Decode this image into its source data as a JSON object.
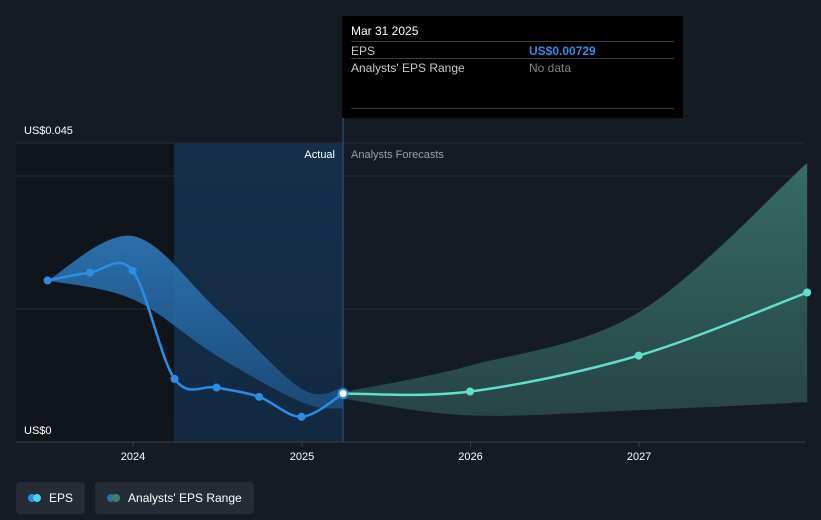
{
  "chart_data": {
    "type": "line",
    "y_labels": {
      "top": "US$0.045",
      "bottom": "US$0"
    },
    "ylim": [
      0,
      0.045
    ],
    "x_ticks": [
      "2024",
      "2025",
      "2026",
      "2027"
    ],
    "section_labels": {
      "actual": "Actual",
      "forecast": "Analysts Forecasts"
    },
    "series": [
      {
        "name": "EPS",
        "values": [
          {
            "x": "2023-06-30",
            "y": 0.0243
          },
          {
            "x": "2023-09-30",
            "y": 0.0255
          },
          {
            "x": "2023-12-31",
            "y": 0.0258
          },
          {
            "x": "2024-03-31",
            "y": 0.0095
          },
          {
            "x": "2024-06-30",
            "y": 0.0082
          },
          {
            "x": "2024-09-30",
            "y": 0.0068
          },
          {
            "x": "2024-12-31",
            "y": 0.0038
          },
          {
            "x": "2025-03-31",
            "y": 0.00729
          }
        ]
      },
      {
        "name": "EPS forecast",
        "values": [
          {
            "x": "2025-03-31",
            "y": 0.00729
          },
          {
            "x": "2025-12-31",
            "y": 0.0076
          },
          {
            "x": "2026-12-31",
            "y": 0.013
          },
          {
            "x": "2027-12-31",
            "y": 0.0225
          }
        ]
      }
    ],
    "past_range": {
      "upper": [
        {
          "x": "2023-06-30",
          "y": 0.0243
        },
        {
          "x": "2023-12-31",
          "y": 0.031
        },
        {
          "x": "2024-06-30",
          "y": 0.02
        },
        {
          "x": "2024-12-31",
          "y": 0.008
        },
        {
          "x": "2025-03-31",
          "y": 0.0082
        }
      ],
      "lower": [
        {
          "x": "2023-06-30",
          "y": 0.0243
        },
        {
          "x": "2023-12-31",
          "y": 0.0215
        },
        {
          "x": "2024-06-30",
          "y": 0.013
        },
        {
          "x": "2024-12-31",
          "y": 0.006
        },
        {
          "x": "2025-03-31",
          "y": 0.005
        }
      ]
    },
    "forecast_range": {
      "upper": [
        {
          "x": "2025-03-31",
          "y": 0.0075
        },
        {
          "x": "2025-12-31",
          "y": 0.0115
        },
        {
          "x": "2026-12-31",
          "y": 0.0195
        },
        {
          "x": "2027-12-31",
          "y": 0.042
        }
      ],
      "lower": [
        {
          "x": "2025-03-31",
          "y": 0.0065
        },
        {
          "x": "2025-12-31",
          "y": 0.004
        },
        {
          "x": "2026-12-31",
          "y": 0.0048
        },
        {
          "x": "2027-12-31",
          "y": 0.006
        }
      ]
    },
    "legend": [
      {
        "label": "EPS",
        "colors": [
          "#2a8ee6",
          "#4ad3ef"
        ]
      },
      {
        "label": "Analysts' EPS Range",
        "colors": [
          "#2a6fa8",
          "#3e7f74"
        ]
      }
    ],
    "colors": {
      "eps_line": "#2a8ee6",
      "forecast_line": "#5fe0cc",
      "past_range_fill": "#2a6fa8",
      "forecast_range_fill": "#3a6e66",
      "background": "#151b24"
    }
  },
  "tooltip": {
    "date": "Mar 31 2025",
    "rows": [
      {
        "label": "EPS",
        "value": "US$0.00729"
      },
      {
        "label": "Analysts' EPS Range",
        "value": "No data"
      }
    ]
  }
}
